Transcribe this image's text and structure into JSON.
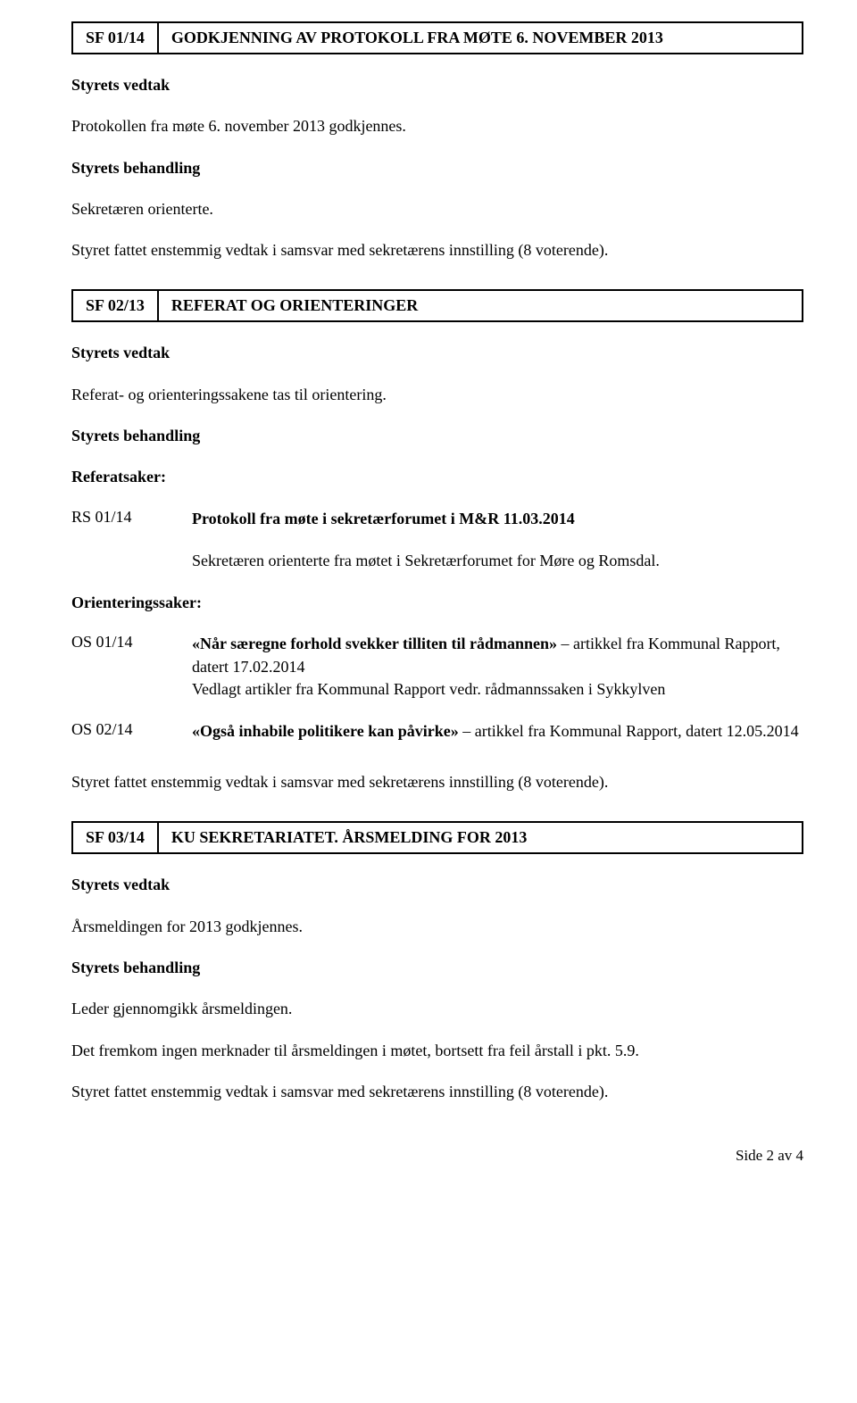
{
  "box1": {
    "code": "SF 01/14",
    "title": "GODKJENNING AV PROTOKOLL FRA MØTE 6. NOVEMBER 2013"
  },
  "sec1": {
    "vedtak_h": "Styrets vedtak",
    "vedtak_t": "Protokollen fra møte 6. november 2013 godkjennes.",
    "beh_h": "Styrets behandling",
    "beh_t1": "Sekretæren orienterte.",
    "beh_t2": "Styret fattet enstemmig vedtak i samsvar med sekretærens innstilling (8 voterende)."
  },
  "box2": {
    "code": "SF 02/13",
    "title": "REFERAT OG ORIENTERINGER"
  },
  "sec2": {
    "vedtak_h": "Styrets vedtak",
    "vedtak_t": "Referat- og orienteringssakene tas til orientering.",
    "beh_h": "Styrets behandling",
    "ref_h": "Referatsaker:",
    "rs_code": "RS 01/14",
    "rs_title": "Protokoll fra møte i sekretærforumet i M&R 11.03.2014",
    "rs_desc": "Sekretæren orienterte fra møtet i Sekretærforumet for Møre og Romsdal.",
    "ori_h": "Orienteringssaker:",
    "os1_code": "OS 01/14",
    "os1_bold": "«Når særegne forhold svekker tilliten til rådmannen»",
    "os1_rest": " – artikkel fra Kommunal Rapport, datert 17.02.2014",
    "os1_line2": "Vedlagt artikler fra Kommunal Rapport vedr. rådmannssaken i Sykkylven",
    "os2_code": "OS 02/14",
    "os2_bold": "«Også inhabile politikere kan påvirke»",
    "os2_rest": " – artikkel fra Kommunal Rapport, datert 12.05.2014",
    "closing": "Styret fattet enstemmig vedtak i samsvar med sekretærens innstilling (8 voterende)."
  },
  "box3": {
    "code": "SF 03/14",
    "title": "KU SEKRETARIATET. ÅRSMELDING FOR 2013"
  },
  "sec3": {
    "vedtak_h": "Styrets vedtak",
    "vedtak_t": "Årsmeldingen for 2013 godkjennes.",
    "beh_h": "Styrets behandling",
    "beh_t1": "Leder gjennomgikk årsmeldingen.",
    "beh_t2": "Det fremkom ingen merknader til årsmeldingen i møtet, bortsett fra feil årstall i pkt. 5.9.",
    "beh_t3": "Styret fattet enstemmig vedtak i samsvar med sekretærens innstilling (8 voterende)."
  },
  "footer": "Side 2 av 4"
}
